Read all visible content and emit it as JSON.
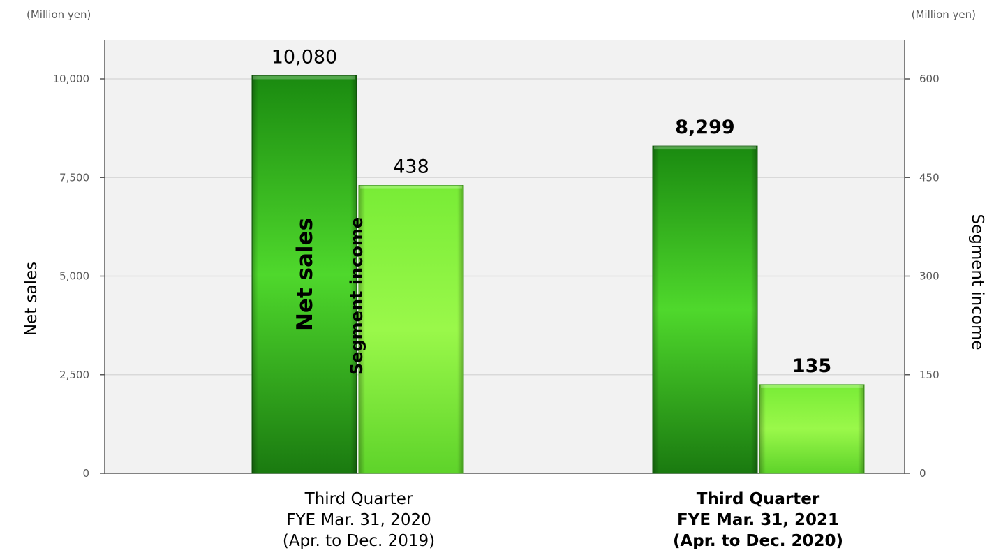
{
  "units": {
    "left": "(Million yen)",
    "right": "(Million yen)"
  },
  "axes": {
    "left_title": "Net sales",
    "right_title": "Segment income",
    "left_ticks": [
      "0",
      "2,500",
      "5,000",
      "7,500",
      "10,000"
    ],
    "right_ticks": [
      "0",
      "150",
      "300",
      "450",
      "600"
    ]
  },
  "categories": [
    {
      "lines": [
        "Third Quarter",
        "FYE Mar. 31, 2020",
        "(Apr. to Dec. 2019)"
      ],
      "bold": false
    },
    {
      "lines": [
        "Third Quarter",
        "FYE Mar. 31, 2021",
        "(Apr. to Dec. 2020)"
      ],
      "bold": true
    }
  ],
  "bar_labels": {
    "net_sales": "Net sales",
    "segment_income": "Segment income"
  },
  "colors": {
    "net_sales": "#1f8a12",
    "segment_income": "#7ef23a",
    "plot_bg": "#f2f2f2",
    "grid": "#d9d9d9"
  },
  "chart_data": {
    "type": "bar",
    "categories": [
      "Third Quarter FYE Mar. 31, 2020 (Apr. to Dec. 2019)",
      "Third Quarter FYE Mar. 31, 2021 (Apr. to Dec. 2020)"
    ],
    "series": [
      {
        "name": "Net sales",
        "axis": "left",
        "values": [
          10080,
          8299
        ],
        "labels": [
          "10,080",
          "8,299"
        ]
      },
      {
        "name": "Segment income",
        "axis": "right",
        "values": [
          438,
          135
        ],
        "labels": [
          "438",
          "135"
        ]
      }
    ],
    "ylim_left": [
      0,
      10000
    ],
    "ylim_right": [
      0,
      600
    ],
    "ylabel_left": "Net sales",
    "ylabel_right": "Segment income",
    "grid": true
  }
}
